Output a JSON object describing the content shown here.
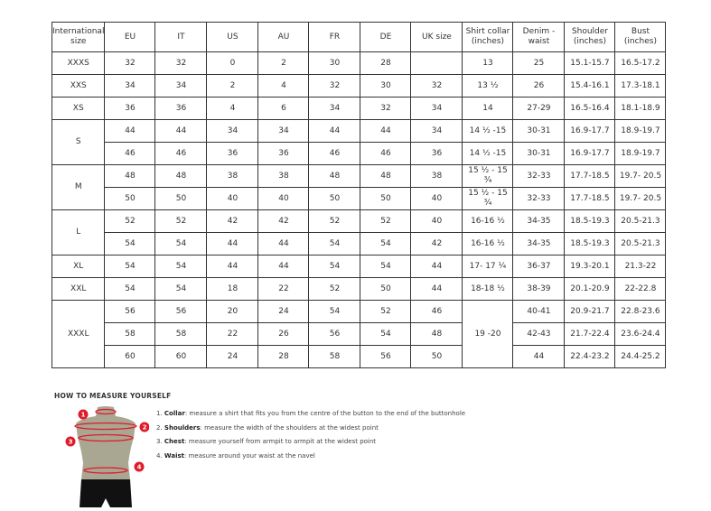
{
  "table": {
    "headers": [
      "International size",
      "EU",
      "IT",
      "US",
      "AU",
      "FR",
      "DE",
      "UK size",
      "Shirt collar (inches)",
      "Denim - waist",
      "Shoulder (inches)",
      "Bust (inches)"
    ],
    "groups": [
      {
        "size": "XXXS",
        "rows": [
          [
            "32",
            "32",
            "0",
            "2",
            "30",
            "28",
            "",
            "13",
            "25",
            "15.1-15.7",
            "16.5-17.2"
          ]
        ]
      },
      {
        "size": "XXS",
        "rows": [
          [
            "34",
            "34",
            "2",
            "4",
            "32",
            "30",
            "32",
            "13 ½",
            "26",
            "15.4-16.1",
            "17.3-18.1"
          ]
        ]
      },
      {
        "size": "XS",
        "rows": [
          [
            "36",
            "36",
            "4",
            "6",
            "34",
            "32",
            "34",
            "14",
            "27-29",
            "16.5-16.4",
            "18.1-18.9"
          ]
        ]
      },
      {
        "size": "S",
        "rows": [
          [
            "44",
            "44",
            "34",
            "34",
            "44",
            "44",
            "34",
            "14 ½ -15",
            "30-31",
            "16.9-17.7",
            "18.9-19.7"
          ],
          [
            "46",
            "46",
            "36",
            "36",
            "46",
            "46",
            "36",
            "14 ½ -15",
            "30-31",
            "16.9-17.7",
            "18.9-19.7"
          ]
        ]
      },
      {
        "size": "M",
        "rows": [
          [
            "48",
            "48",
            "38",
            "38",
            "48",
            "48",
            "38",
            "15 ½ - 15 ¾",
            "32-33",
            "17.7-18.5",
            "19.7- 20.5"
          ],
          [
            "50",
            "50",
            "40",
            "40",
            "50",
            "50",
            "40",
            "15 ½ - 15 ¾",
            "32-33",
            "17.7-18.5",
            "19.7- 20.5"
          ]
        ]
      },
      {
        "size": "L",
        "rows": [
          [
            "52",
            "52",
            "42",
            "42",
            "52",
            "52",
            "40",
            "16-16 ½",
            "34-35",
            "18.5-19.3",
            "20.5-21.3"
          ],
          [
            "54",
            "54",
            "44",
            "44",
            "54",
            "54",
            "42",
            "16-16 ½",
            "34-35",
            "18.5-19.3",
            "20.5-21.3"
          ]
        ]
      },
      {
        "size": "XL",
        "rows": [
          [
            "54",
            "54",
            "44",
            "44",
            "54",
            "54",
            "44",
            "17- 17 ¼",
            "36-37",
            "19.3-20.1",
            "21.3-22"
          ]
        ]
      },
      {
        "size": "XXL",
        "rows": [
          [
            "54",
            "54",
            "18",
            "22",
            "52",
            "50",
            "44",
            "18-18 ½",
            "38-39",
            "20.1-20.9",
            "22-22.8"
          ]
        ]
      },
      {
        "size": "XXXL",
        "collar_merged": "19 -20",
        "rows": [
          [
            "56",
            "56",
            "20",
            "24",
            "54",
            "52",
            "46",
            null,
            "40-41",
            "20.9-21.7",
            "22.8-23.6"
          ],
          [
            "58",
            "58",
            "22",
            "26",
            "56",
            "54",
            "48",
            null,
            "42-43",
            "21.7-22.4",
            "23.6-24.4"
          ],
          [
            "60",
            "60",
            "24",
            "28",
            "58",
            "56",
            "50",
            null,
            "44",
            "22.4-23.2",
            "24.4-25.2"
          ]
        ]
      }
    ]
  },
  "guide": {
    "title": "HOW TO MEASURE YOURSELF",
    "markers": [
      "1",
      "2",
      "3",
      "4"
    ],
    "steps": [
      {
        "num": "1.",
        "term": "Collar",
        "text": ": measure a shirt that fits you from the centre of the button to the end of the buttonhole"
      },
      {
        "num": "2.",
        "term": "Shoulders",
        "text": ": measure the width of the shoulders at the widest point"
      },
      {
        "num": "3.",
        "term": "Chest",
        "text": ": measure yourself from armpit to armpit at the widest point"
      },
      {
        "num": "4.",
        "term": "Waist",
        "text": ": measure around your waist at the navel"
      }
    ],
    "colors": {
      "marker": "#e0192b",
      "torso": "#a9a691",
      "shorts": "#111111"
    }
  }
}
